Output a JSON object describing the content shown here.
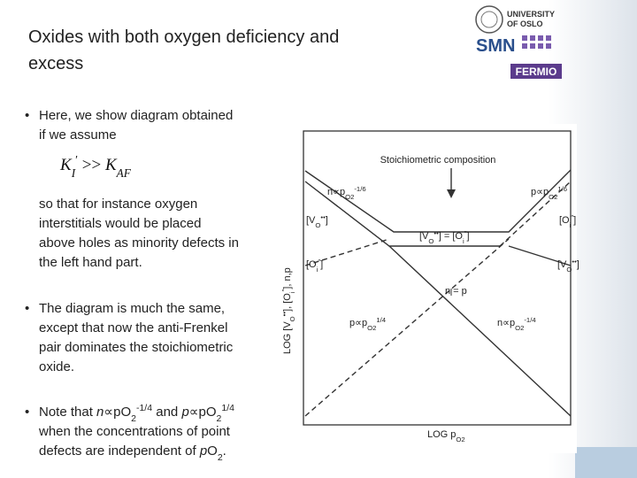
{
  "header": {
    "title": [
      "Oxides with both oxygen deficiency and",
      "excess"
    ],
    "logo": {
      "university": [
        "UNIVERSITY",
        "OF OSLO"
      ],
      "smn": "SMN",
      "fermio": "FERMIO"
    }
  },
  "bullets": [
    {
      "lines": [
        [
          {
            "text": "Here, we show diagram obtained"
          }
        ],
        [
          {
            "text": "if we assume"
          }
        ]
      ],
      "formula": [
        {
          "text": "K",
          "style": "i"
        },
        {
          "text": "I",
          "style": "i sub"
        },
        {
          "text": "′",
          "style": "sup"
        },
        {
          "text": " >> "
        },
        {
          "text": "K",
          "style": "i"
        },
        {
          "text": "AF",
          "style": "i sub"
        }
      ],
      "continuation": [
        [
          {
            "text": "so that for instance oxygen"
          }
        ],
        [
          {
            "text": "interstitials would be placed"
          }
        ],
        [
          {
            "text": "above holes as minority defects in"
          }
        ],
        [
          {
            "text": "the left hand part."
          }
        ]
      ]
    },
    {
      "lines": [
        [
          {
            "text": "The diagram is much the same,"
          }
        ],
        [
          {
            "text": "except that now the anti-Frenkel"
          }
        ],
        [
          {
            "text": "pair dominates the stoichiometric"
          }
        ],
        [
          {
            "text": "oxide."
          }
        ]
      ]
    },
    {
      "lines": [
        [
          {
            "text": "Note that "
          },
          {
            "text": "n",
            "style": "i"
          },
          {
            "text": "∝p"
          },
          {
            "text": "O"
          },
          {
            "text": "2",
            "style": "sub"
          },
          {
            "text": "-1/4",
            "style": "sup"
          },
          {
            "text": " and "
          },
          {
            "text": "p",
            "style": "i"
          },
          {
            "text": "∝pO"
          },
          {
            "text": "2",
            "style": "sub"
          },
          {
            "text": "1/4",
            "style": "sup"
          }
        ],
        [
          {
            "text": "when the concentrations of point"
          }
        ],
        [
          {
            "text": "defects are independent of "
          },
          {
            "text": "p",
            "style": "i"
          },
          {
            "text": "O"
          },
          {
            "text": "2",
            "style": "sub"
          },
          {
            "text": "."
          }
        ]
      ]
    }
  ],
  "diagram": {
    "heading": "Stoichiometric composition",
    "x_axis": [
      {
        "text": "LOG p"
      },
      {
        "text": "O2",
        "style": "sub"
      }
    ],
    "y_axis": [
      {
        "text": "LOG [V"
      },
      {
        "text": "O",
        "style": "sub"
      },
      {
        "text": "••",
        "style": "sup"
      },
      {
        "text": "], [O"
      },
      {
        "text": "i",
        "style": "sub"
      },
      {
        "text": "″",
        "style": "sup"
      },
      {
        "text": "], n,p"
      }
    ],
    "labels": [
      [
        {
          "text": "n∝p"
        },
        {
          "text": "O2",
          "style": "sub"
        },
        {
          "text": "-1/6",
          "style": "sup"
        }
      ],
      [
        {
          "text": "p∝p"
        },
        {
          "text": "O2",
          "style": "sub"
        },
        {
          "text": "1/6",
          "style": "sup"
        }
      ],
      [
        {
          "text": "[V"
        },
        {
          "text": "O",
          "style": "sub"
        },
        {
          "text": "••",
          "style": "sup"
        },
        {
          "text": "]"
        }
      ],
      [
        {
          "text": "[O"
        },
        {
          "text": "i",
          "style": "sub"
        },
        {
          "text": "″",
          "style": "sup"
        },
        {
          "text": "]"
        }
      ],
      [
        {
          "text": "[V"
        },
        {
          "text": "O",
          "style": "sub"
        },
        {
          "text": "••",
          "style": "sup"
        },
        {
          "text": "] = [O"
        },
        {
          "text": "i",
          "style": "sub"
        },
        {
          "text": "″",
          "style": "sup"
        },
        {
          "text": "]"
        }
      ],
      [
        {
          "text": "[O"
        },
        {
          "text": "i",
          "style": "sub"
        },
        {
          "text": "″",
          "style": "sup"
        },
        {
          "text": "]"
        }
      ],
      [
        {
          "text": "[V"
        },
        {
          "text": "O",
          "style": "sub"
        },
        {
          "text": "••",
          "style": "sup"
        },
        {
          "text": "]"
        }
      ],
      [
        {
          "text": "n = p"
        }
      ],
      [
        {
          "text": "p∝p"
        },
        {
          "text": "O2",
          "style": "sub"
        },
        {
          "text": "1/4",
          "style": "sup"
        }
      ],
      [
        {
          "text": "n∝p"
        },
        {
          "text": "O2",
          "style": "sub"
        },
        {
          "text": "-1/4",
          "style": "sup"
        }
      ]
    ]
  }
}
